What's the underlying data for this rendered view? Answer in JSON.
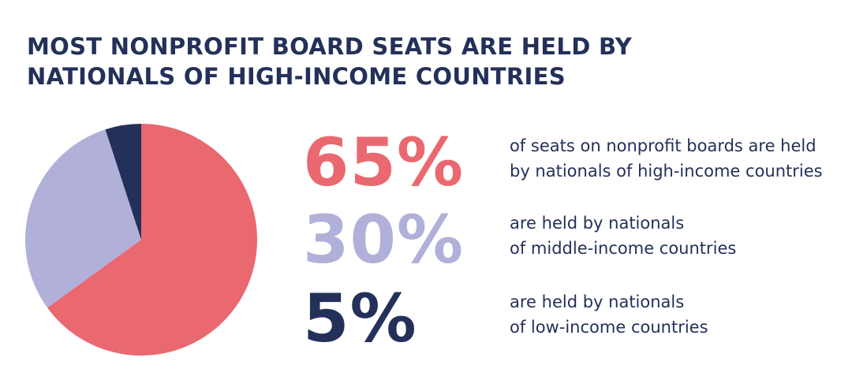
{
  "title": {
    "line1": "MOST NONPROFIT BOARD SEATS ARE HELD BY",
    "line2": "NATIONALS OF HIGH-INCOME COUNTRIES"
  },
  "colors": {
    "high": "#ea6870",
    "middle": "#b1b0d9",
    "low": "#23305a",
    "text": "#23305a"
  },
  "stats": [
    {
      "value": "65%",
      "desc_line1": "of seats on nonprofit boards are held",
      "desc_line2": "by nationals of high-income countries"
    },
    {
      "value": "30%",
      "desc_line1": "are held by nationals",
      "desc_line2": "of middle-income countries"
    },
    {
      "value": "5%",
      "desc_line1": "are held by nationals",
      "desc_line2": "of low-income countries"
    }
  ],
  "chart_data": {
    "type": "pie",
    "categories": [
      "high-income countries",
      "middle-income countries",
      "low-income countries"
    ],
    "values": [
      65,
      30,
      5
    ],
    "colors": [
      "#ea6870",
      "#b1b0d9",
      "#23305a"
    ],
    "start": "12 o'clock",
    "direction": "clockwise",
    "legend": "none"
  }
}
